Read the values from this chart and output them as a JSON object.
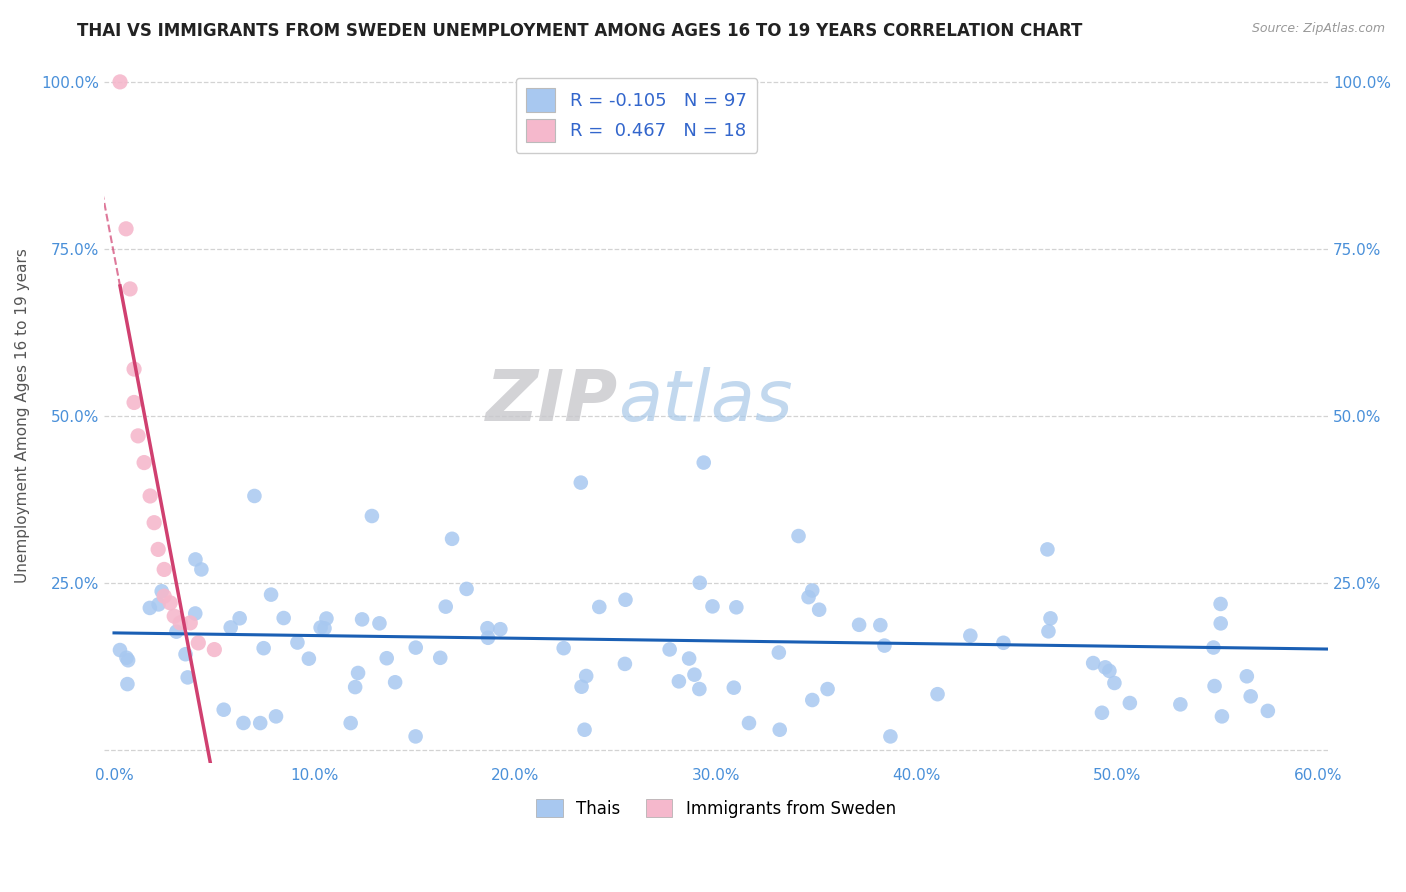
{
  "title": "THAI VS IMMIGRANTS FROM SWEDEN UNEMPLOYMENT AMONG AGES 16 TO 19 YEARS CORRELATION CHART",
  "source": "Source: ZipAtlas.com",
  "ylabel": "Unemployment Among Ages 16 to 19 years",
  "xlim": [
    -0.005,
    0.605
  ],
  "ylim": [
    -0.02,
    1.02
  ],
  "xticks": [
    0.0,
    0.1,
    0.2,
    0.3,
    0.4,
    0.5,
    0.6
  ],
  "xtick_labels": [
    "0.0%",
    "10.0%",
    "20.0%",
    "30.0%",
    "40.0%",
    "50.0%",
    "60.0%"
  ],
  "yticks": [
    0.0,
    0.25,
    0.5,
    0.75,
    1.0
  ],
  "ytick_labels_left": [
    "",
    "25.0%",
    "50.0%",
    "75.0%",
    "100.0%"
  ],
  "ytick_labels_right": [
    "",
    "25.0%",
    "50.0%",
    "75.0%",
    "100.0%"
  ],
  "r_thai": -0.105,
  "n_thai": 97,
  "r_sweden": 0.467,
  "n_sweden": 18,
  "color_thai": "#a8c8f0",
  "color_sweden": "#f5b8cc",
  "trendline_thai_color": "#1a5fb4",
  "trendline_sweden_color": "#d04070",
  "background_color": "#ffffff",
  "watermark_zip": "ZIP",
  "watermark_atlas": "atlas",
  "title_fontsize": 12,
  "axis_label_fontsize": 11,
  "tick_fontsize": 11,
  "watermark_fontsize": 52
}
